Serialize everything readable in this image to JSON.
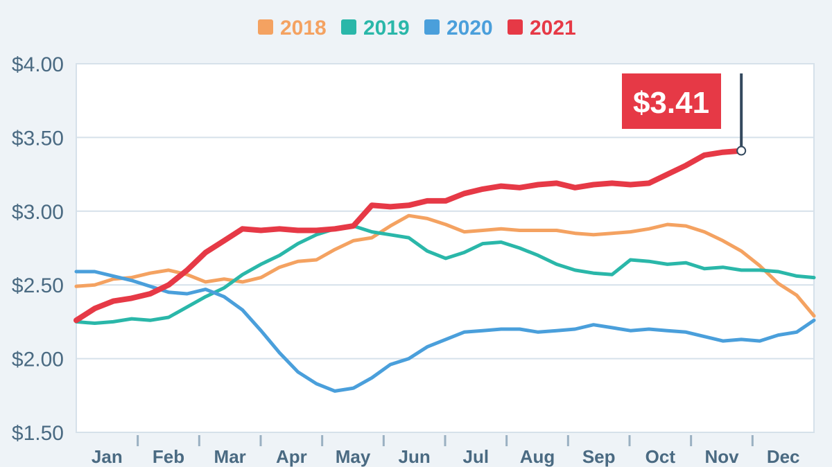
{
  "chart_data": {
    "type": "line",
    "title": "",
    "xlabel": "",
    "ylabel": "",
    "ylim": [
      1.5,
      4.0
    ],
    "yticks": [
      {
        "value": 4.0,
        "label": "$4.00"
      },
      {
        "value": 3.5,
        "label": "$3.50"
      },
      {
        "value": 3.0,
        "label": "$3.00"
      },
      {
        "value": 2.5,
        "label": "$2.50"
      },
      {
        "value": 2.0,
        "label": "$2.00"
      },
      {
        "value": 1.5,
        "label": "$1.50"
      }
    ],
    "categories": [
      "Jan",
      "Feb",
      "Mar",
      "Apr",
      "May",
      "Jun",
      "Jul",
      "Aug",
      "Sep",
      "Oct",
      "Nov",
      "Dec"
    ],
    "grid": true,
    "legend_position": "top-center",
    "series": [
      {
        "name": "2018",
        "color": "#f4a261",
        "x": [
          0.0,
          0.3,
          0.6,
          0.9,
          1.2,
          1.5,
          1.8,
          2.1,
          2.4,
          2.7,
          3.0,
          3.3,
          3.6,
          3.9,
          4.2,
          4.5,
          4.8,
          5.1,
          5.4,
          5.7,
          6.0,
          6.3,
          6.6,
          6.9,
          7.2,
          7.5,
          7.8,
          8.1,
          8.4,
          8.7,
          9.0,
          9.3,
          9.6,
          9.9,
          10.2,
          10.5,
          10.8,
          11.1,
          11.4,
          11.7,
          11.98
        ],
        "values": [
          2.49,
          2.5,
          2.54,
          2.55,
          2.58,
          2.6,
          2.57,
          2.52,
          2.54,
          2.52,
          2.55,
          2.62,
          2.66,
          2.67,
          2.74,
          2.8,
          2.82,
          2.9,
          2.97,
          2.95,
          2.91,
          2.86,
          2.87,
          2.88,
          2.87,
          2.87,
          2.87,
          2.85,
          2.84,
          2.85,
          2.86,
          2.88,
          2.91,
          2.9,
          2.86,
          2.8,
          2.73,
          2.63,
          2.51,
          2.43,
          2.29
        ]
      },
      {
        "name": "2019",
        "color": "#2ab7a9",
        "x": [
          0.0,
          0.3,
          0.6,
          0.9,
          1.2,
          1.5,
          1.8,
          2.1,
          2.4,
          2.7,
          3.0,
          3.3,
          3.6,
          3.9,
          4.2,
          4.5,
          4.8,
          5.1,
          5.4,
          5.7,
          6.0,
          6.3,
          6.6,
          6.9,
          7.2,
          7.5,
          7.8,
          8.1,
          8.4,
          8.7,
          9.0,
          9.3,
          9.6,
          9.9,
          10.2,
          10.5,
          10.8,
          11.1,
          11.4,
          11.7,
          11.98
        ],
        "values": [
          2.25,
          2.24,
          2.25,
          2.27,
          2.26,
          2.28,
          2.35,
          2.42,
          2.48,
          2.57,
          2.64,
          2.7,
          2.78,
          2.84,
          2.88,
          2.9,
          2.86,
          2.84,
          2.82,
          2.73,
          2.68,
          2.72,
          2.78,
          2.79,
          2.75,
          2.7,
          2.64,
          2.6,
          2.58,
          2.57,
          2.67,
          2.66,
          2.64,
          2.65,
          2.61,
          2.62,
          2.6,
          2.6,
          2.59,
          2.56,
          2.55
        ]
      },
      {
        "name": "2020",
        "color": "#4a9fdb",
        "x": [
          0.0,
          0.3,
          0.6,
          0.9,
          1.2,
          1.5,
          1.8,
          2.1,
          2.4,
          2.7,
          3.0,
          3.3,
          3.6,
          3.9,
          4.2,
          4.5,
          4.8,
          5.1,
          5.4,
          5.7,
          6.0,
          6.3,
          6.6,
          6.9,
          7.2,
          7.5,
          7.8,
          8.1,
          8.4,
          8.7,
          9.0,
          9.3,
          9.6,
          9.9,
          10.2,
          10.5,
          10.8,
          11.1,
          11.4,
          11.7,
          11.98
        ],
        "values": [
          2.59,
          2.59,
          2.56,
          2.53,
          2.49,
          2.45,
          2.44,
          2.47,
          2.42,
          2.33,
          2.19,
          2.04,
          1.91,
          1.83,
          1.78,
          1.8,
          1.87,
          1.96,
          2.0,
          2.08,
          2.13,
          2.18,
          2.19,
          2.2,
          2.2,
          2.18,
          2.19,
          2.2,
          2.23,
          2.21,
          2.19,
          2.2,
          2.19,
          2.18,
          2.15,
          2.12,
          2.13,
          2.12,
          2.16,
          2.18,
          2.26
        ]
      },
      {
        "name": "2021",
        "color": "#e63946",
        "x": [
          0.0,
          0.3,
          0.6,
          0.9,
          1.2,
          1.5,
          1.8,
          2.1,
          2.4,
          2.7,
          3.0,
          3.3,
          3.6,
          3.9,
          4.2,
          4.5,
          4.8,
          5.1,
          5.4,
          5.7,
          6.0,
          6.3,
          6.6,
          6.9,
          7.2,
          7.5,
          7.8,
          8.1,
          8.4,
          8.7,
          9.0,
          9.3,
          9.6,
          9.9,
          10.2,
          10.5,
          10.8
        ],
        "values": [
          2.26,
          2.34,
          2.39,
          2.41,
          2.44,
          2.5,
          2.6,
          2.72,
          2.8,
          2.88,
          2.87,
          2.88,
          2.87,
          2.87,
          2.88,
          2.9,
          3.04,
          3.03,
          3.04,
          3.07,
          3.07,
          3.12,
          3.15,
          3.17,
          3.16,
          3.18,
          3.19,
          3.16,
          3.18,
          3.19,
          3.18,
          3.19,
          3.25,
          3.31,
          3.38,
          3.4,
          3.41
        ]
      }
    ],
    "annotation": {
      "text": "$3.41",
      "series": "2021",
      "x": 10.8,
      "y": 3.41
    }
  }
}
